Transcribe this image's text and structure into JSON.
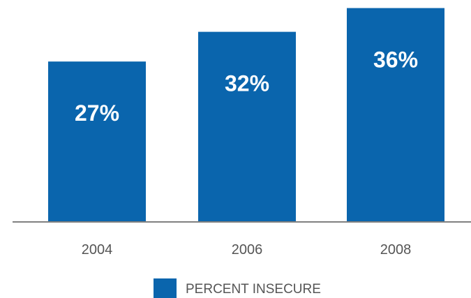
{
  "chart_data": {
    "type": "bar",
    "categories": [
      "2004",
      "2006",
      "2008"
    ],
    "series": [
      {
        "name": "PERCENT INSECURE",
        "values": [
          27,
          32,
          36
        ],
        "labels": [
          "27%",
          "32%",
          "36%"
        ]
      }
    ],
    "title": "",
    "xlabel": "",
    "ylabel": "",
    "ylim": [
      0,
      36.3
    ],
    "grid": false,
    "legend_position": "bottom-center",
    "colors": {
      "bar": "#0a65ad",
      "axis": "#808080",
      "text": "#555555",
      "label": "#ffffff"
    }
  }
}
